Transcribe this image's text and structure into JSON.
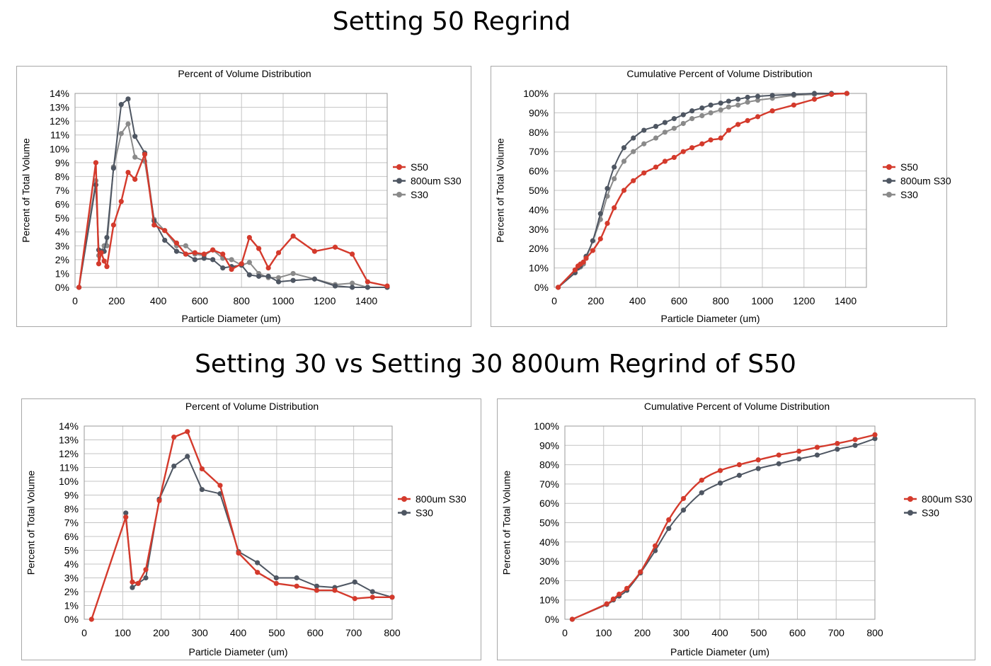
{
  "headings": {
    "top": "Setting 50 Regrind",
    "bottom": "Setting 30 vs Setting 30 800um Regrind of S50"
  },
  "colors": {
    "red": "#d43a2c",
    "dark": "#4e5662",
    "gray": "#8a8a8a",
    "grid": "#c4c4c4"
  },
  "chart_data": [
    {
      "type": "line",
      "title": "Percent of Volume Distribution",
      "xlabel": "Particle Diameter (um)",
      "ylabel": "Percent of Total Volume",
      "xlim": [
        0,
        1500
      ],
      "ylim": [
        0,
        14
      ],
      "xticks": [
        0,
        200,
        400,
        600,
        800,
        1000,
        1200,
        1400
      ],
      "yticks": [
        0,
        1,
        2,
        3,
        4,
        5,
        6,
        7,
        8,
        9,
        10,
        11,
        12,
        13,
        14
      ],
      "ytick_labels": [
        "0%",
        "1%",
        "2%",
        "3%",
        "4%",
        "5%",
        "6%",
        "7%",
        "8%",
        "9%",
        "10%",
        "11%",
        "12%",
        "13%",
        "14%"
      ],
      "grid": true,
      "legend": "right",
      "series": [
        {
          "name": "S50",
          "color": "red",
          "x": [
            19,
            100,
            114,
            126,
            140,
            153,
            185,
            222,
            255,
            288,
            335,
            380,
            431,
            488,
            532,
            576,
            620,
            662,
            710,
            752,
            800,
            838,
            883,
            929,
            978,
            1048,
            1151,
            1250,
            1332,
            1406,
            1500
          ],
          "y": [
            0,
            9.0,
            1.7,
            2.5,
            1.9,
            1.5,
            4.5,
            6.2,
            8.3,
            7.8,
            9.6,
            4.5,
            4.1,
            3.2,
            2.4,
            2.5,
            2.4,
            2.7,
            2.4,
            1.3,
            1.7,
            3.6,
            2.8,
            1.4,
            2.5,
            3.7,
            2.6,
            2.9,
            2.4,
            0.4,
            0.1
          ]
        },
        {
          "name": "800um S30",
          "color": "dark",
          "x": [
            19,
            100,
            114,
            126,
            140,
            153,
            185,
            222,
            255,
            288,
            335,
            380,
            431,
            488,
            532,
            576,
            620,
            662,
            710,
            752,
            800,
            838,
            883,
            929,
            978,
            1048,
            1151,
            1250,
            1332,
            1406,
            1500
          ],
          "y": [
            0,
            7.4,
            2.7,
            2.6,
            2.6,
            3.6,
            8.6,
            13.2,
            13.6,
            10.9,
            9.7,
            4.8,
            3.4,
            2.6,
            2.4,
            2.0,
            2.1,
            2.0,
            1.4,
            1.5,
            1.6,
            0.9,
            0.8,
            0.8,
            0.4,
            0.5,
            0.6,
            0.1,
            0.0,
            0.0,
            0.0
          ]
        },
        {
          "name": "S30",
          "color": "gray",
          "x": [
            19,
            100,
            114,
            126,
            140,
            153,
            185,
            222,
            255,
            288,
            335,
            380,
            431,
            488,
            532,
            576,
            620,
            662,
            710,
            752,
            800,
            838,
            883,
            929,
            978,
            1048,
            1151,
            1250,
            1332,
            1406,
            1500
          ],
          "y": [
            0,
            7.7,
            2.3,
            2.6,
            3.0,
            3.0,
            8.7,
            11.1,
            11.8,
            9.4,
            9.1,
            4.9,
            4.1,
            3.0,
            3.0,
            2.4,
            2.3,
            2.7,
            2.1,
            2.0,
            1.6,
            1.8,
            1.0,
            0.7,
            0.7,
            1.0,
            0.6,
            0.2,
            0.3,
            0.0,
            0.0
          ]
        }
      ]
    },
    {
      "type": "line",
      "title": "Cumulative Percent of Volume Distribution",
      "xlabel": "Particle Diameter (um)",
      "ylabel": "Percent of Total Volume",
      "xlim": [
        0,
        1500
      ],
      "ylim": [
        0,
        100
      ],
      "xticks": [
        0,
        200,
        400,
        600,
        800,
        1000,
        1200,
        1400
      ],
      "yticks": [
        0,
        10,
        20,
        30,
        40,
        50,
        60,
        70,
        80,
        90,
        100
      ],
      "ytick_labels": [
        "0%",
        "10%",
        "20%",
        "30%",
        "40%",
        "50%",
        "60%",
        "70%",
        "80%",
        "90%",
        "100%"
      ],
      "grid": true,
      "legend": "right",
      "series": [
        {
          "name": "S50",
          "color": "red",
          "x": [
            19,
            100,
            114,
            126,
            140,
            153,
            185,
            222,
            255,
            288,
            335,
            380,
            431,
            488,
            532,
            576,
            620,
            662,
            710,
            752,
            800,
            838,
            883,
            929,
            978,
            1048,
            1151,
            1250,
            1332,
            1406
          ],
          "y": [
            0,
            9,
            11,
            12,
            13,
            15,
            19,
            25,
            33,
            41,
            50,
            55,
            59,
            62,
            65,
            67,
            70,
            72,
            74,
            76,
            77,
            81,
            84,
            86,
            88,
            91,
            94,
            97,
            99.5,
            100
          ]
        },
        {
          "name": "800um S30",
          "color": "dark",
          "x": [
            19,
            100,
            114,
            126,
            140,
            153,
            185,
            222,
            255,
            288,
            335,
            380,
            431,
            488,
            532,
            576,
            620,
            662,
            710,
            752,
            800,
            838,
            883,
            929,
            978,
            1048,
            1151,
            1250,
            1332,
            1406
          ],
          "y": [
            0,
            7.5,
            10,
            11,
            13,
            16,
            24,
            38,
            51,
            62,
            72,
            77,
            81,
            83,
            85,
            87,
            89,
            91,
            92.5,
            94,
            95,
            96,
            97,
            98,
            98.5,
            99,
            99.5,
            100,
            100,
            100
          ]
        },
        {
          "name": "S30",
          "color": "gray",
          "x": [
            19,
            100,
            114,
            126,
            140,
            153,
            185,
            222,
            255,
            288,
            335,
            380,
            431,
            488,
            532,
            576,
            620,
            662,
            710,
            752,
            800,
            838,
            883,
            929,
            978,
            1048,
            1151,
            1250,
            1332,
            1406
          ],
          "y": [
            0,
            7.7,
            10,
            10.5,
            12,
            15,
            24,
            35,
            47,
            56,
            65,
            70,
            74,
            77,
            80,
            82,
            84.5,
            87,
            88.5,
            90,
            91.5,
            93,
            94,
            95.5,
            96.5,
            97.5,
            99,
            99.5,
            99.8,
            100
          ]
        }
      ]
    },
    {
      "type": "line",
      "title": "Percent of Volume Distribution",
      "xlabel": "Particle Diameter (um)",
      "ylabel": "Percent of Total Volume",
      "xlim": [
        0,
        800
      ],
      "ylim": [
        0,
        14
      ],
      "xticks": [
        0,
        100,
        200,
        300,
        400,
        500,
        600,
        700,
        800
      ],
      "yticks": [
        0,
        1,
        2,
        3,
        4,
        5,
        6,
        7,
        8,
        9,
        10,
        11,
        12,
        13,
        14
      ],
      "ytick_labels": [
        "0%",
        "1%",
        "2%",
        "3%",
        "4%",
        "5%",
        "6%",
        "7%",
        "8%",
        "9%",
        "10%",
        "11%",
        "12%",
        "13%",
        "14%"
      ],
      "grid": true,
      "legend": "right",
      "series": [
        {
          "name": "800um S30",
          "color": "red",
          "x": [
            19,
            108,
            125,
            140,
            160,
            195,
            233,
            268,
            306,
            353,
            401,
            450,
            499,
            552,
            604,
            651,
            703,
            749,
            800
          ],
          "y": [
            0,
            7.4,
            2.7,
            2.6,
            3.6,
            8.6,
            13.2,
            13.6,
            10.9,
            9.7,
            4.8,
            3.4,
            2.6,
            2.4,
            2.1,
            2.1,
            1.5,
            1.6,
            1.6
          ]
        },
        {
          "name": "S30",
          "color": "dark",
          "x": [
            108,
            125,
            140,
            160,
            195,
            233,
            268,
            306,
            353,
            401,
            450,
            499,
            552,
            604,
            651,
            703,
            749,
            800
          ],
          "y": [
            7.7,
            2.3,
            2.6,
            3.0,
            8.7,
            11.1,
            11.8,
            9.4,
            9.1,
            4.9,
            4.1,
            3.0,
            3.0,
            2.4,
            2.3,
            2.7,
            2.0,
            1.6
          ]
        }
      ]
    },
    {
      "type": "line",
      "title": "Cumulative Percent of Volume Distribution",
      "xlabel": "Particle Diameter (um)",
      "ylabel": "Percent of Total Volume",
      "xlim": [
        0,
        800
      ],
      "ylim": [
        0,
        100
      ],
      "xticks": [
        0,
        100,
        200,
        300,
        400,
        500,
        600,
        700,
        800
      ],
      "yticks": [
        0,
        10,
        20,
        30,
        40,
        50,
        60,
        70,
        80,
        90,
        100
      ],
      "ytick_labels": [
        "0%",
        "10%",
        "20%",
        "30%",
        "40%",
        "50%",
        "60%",
        "70%",
        "80%",
        "90%",
        "100%"
      ],
      "grid": true,
      "legend": "right",
      "series": [
        {
          "name": "800um S30",
          "color": "red",
          "x": [
            19,
            108,
            125,
            140,
            160,
            195,
            233,
            268,
            306,
            353,
            401,
            450,
            499,
            552,
            604,
            651,
            703,
            749,
            800
          ],
          "y": [
            0,
            8,
            10.5,
            13,
            16,
            24.5,
            38,
            51.5,
            62.5,
            72,
            77,
            80,
            82.5,
            85,
            87,
            89,
            91,
            93,
            95.5
          ]
        },
        {
          "name": "S30",
          "color": "dark",
          "x": [
            19,
            108,
            125,
            140,
            160,
            195,
            233,
            268,
            306,
            353,
            401,
            450,
            499,
            552,
            604,
            651,
            703,
            749,
            800
          ],
          "y": [
            0,
            7.7,
            10,
            12,
            15,
            24,
            35.5,
            47,
            56.5,
            65.5,
            70.5,
            74.5,
            78,
            80.5,
            83,
            85,
            88,
            90,
            93.5
          ]
        }
      ]
    }
  ]
}
